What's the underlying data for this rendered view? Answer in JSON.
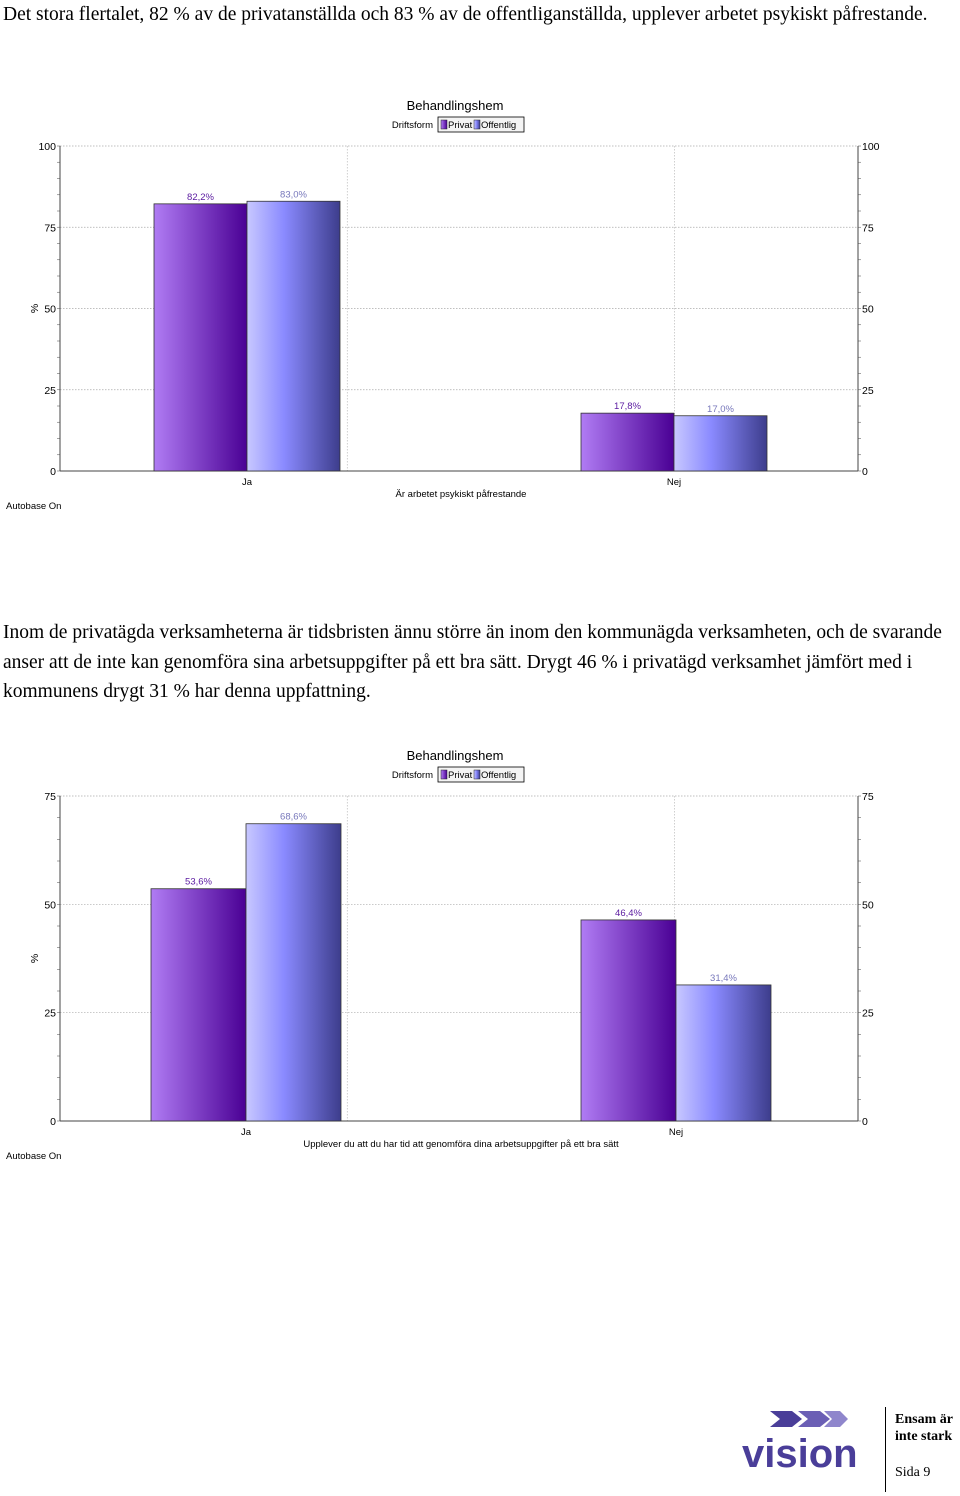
{
  "text": {
    "intro": "Det stora flertalet, 82 % av de privatanställda och 83 % av de offentliganställda, upplever arbetet psykiskt påfrestande.",
    "paragraph2": "Inom de privatägda verksamheterna är tidsbristen ännu större än inom den kommunägda verksamheten, och de svarande anser att de inte kan genomföra sina arbetsuppgifter på ett bra sätt. Drygt 46 % i privatägd verksamhet jämfört med i kommunens drygt 31 % har denna uppfattning."
  },
  "chart_data": [
    {
      "type": "bar",
      "title": "Behandlingshem",
      "legend_label": "Driftsform",
      "legend_position": "top-center",
      "series": [
        {
          "name": "Privat",
          "values": [
            82.2,
            17.8
          ],
          "labels": [
            "82,2%",
            "17,8%"
          ]
        },
        {
          "name": "Offentlig",
          "values": [
            83.0,
            17.0
          ],
          "labels": [
            "83,0%",
            "17,0%"
          ]
        }
      ],
      "categories": [
        "Ja",
        "Nej"
      ],
      "xlabel": "Är arbetet psykiskt påfrestande",
      "ylabel": "%",
      "ylim": [
        0,
        100
      ],
      "yticks": [
        0,
        25,
        50,
        75,
        100
      ],
      "grid": true,
      "corner_note": "Autobase On"
    },
    {
      "type": "bar",
      "title": "Behandlingshem",
      "legend_label": "Driftsform",
      "legend_position": "top-center",
      "series": [
        {
          "name": "Privat",
          "values": [
            53.6,
            46.4
          ],
          "labels": [
            "53,6%",
            "46,4%"
          ]
        },
        {
          "name": "Offentlig",
          "values": [
            68.6,
            31.4
          ],
          "labels": [
            "68,6%",
            "31,4%"
          ]
        }
      ],
      "categories": [
        "Ja",
        "Nej"
      ],
      "xlabel": "Upplever du att du har tid att genomföra dina arbetsuppgifter på ett bra sätt",
      "ylabel": "%",
      "ylim": [
        0,
        75
      ],
      "yticks": [
        0,
        25,
        50,
        75
      ],
      "grid": true,
      "corner_note": "Autobase On"
    }
  ],
  "footer": {
    "brand": "vision",
    "tagline_1": "Ensam är",
    "tagline_2": "inte stark",
    "page_label": "Sida 9"
  },
  "colors": {
    "privat_dark": "#4a0094",
    "privat_light": "#b07cf4",
    "offentlig_light": "#c8c8ff",
    "offentlig_dark": "#3d3d8c",
    "logo": "#4a3e99"
  }
}
